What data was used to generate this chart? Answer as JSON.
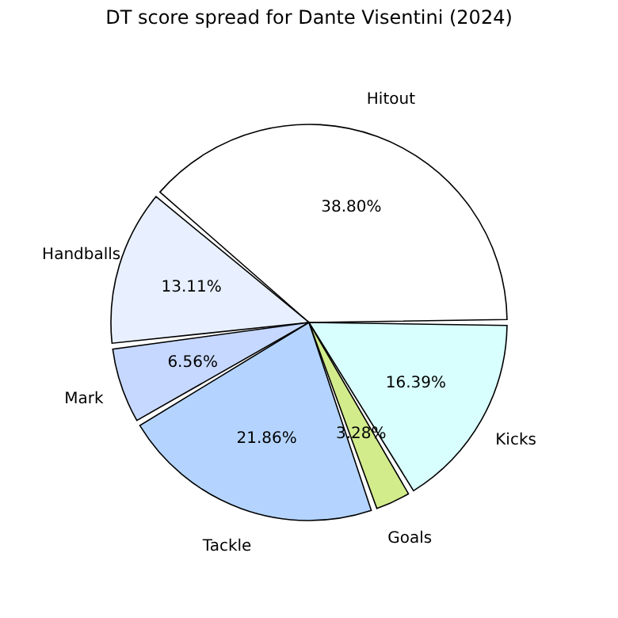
{
  "chart_data": {
    "type": "pie",
    "title": "DT score spread for Dante Visentini (2024)",
    "categories": [
      "Hitout",
      "Handballs",
      "Mark",
      "Tackle",
      "Goals",
      "Kicks"
    ],
    "values": [
      38.8,
      13.11,
      6.56,
      21.86,
      3.28,
      16.39
    ],
    "value_labels": [
      "38.80%",
      "13.11%",
      "6.56%",
      "21.86%",
      "3.28%",
      "16.39%"
    ],
    "colors": [
      "#ffffff",
      "#e8f0ff",
      "#c6d8ff",
      "#b4d4ff",
      "#d2ec8c",
      "#d8fefe"
    ],
    "legend": false
  }
}
